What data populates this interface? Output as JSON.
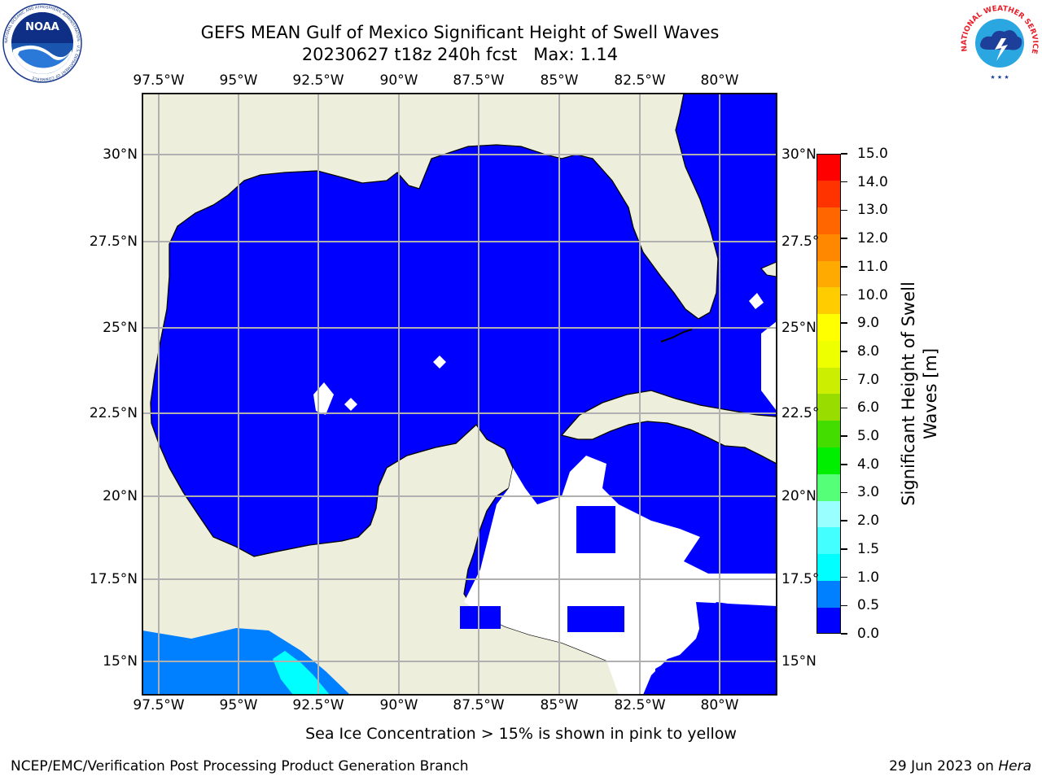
{
  "header": {
    "title_line1": "GEFS MEAN Gulf of Mexico Significant Height of Swell Waves",
    "title_line2": "20230627 t18z 240h fcst   Max: 1.14"
  },
  "logos": {
    "left": {
      "name": "NOAA",
      "ring_text": "NATIONAL OCEANIC AND ATMOSPHERIC ADMINISTRATION · U.S. DEPARTMENT OF COMMERCE"
    },
    "right": {
      "ring_text": "NATIONAL WEATHER SERVICE"
    }
  },
  "map": {
    "lon_labels": [
      "97.5°W",
      "95°W",
      "92.5°W",
      "90°W",
      "87.5°W",
      "85°W",
      "82.5°W",
      "80°W"
    ],
    "lat_labels": [
      "30°N",
      "27.5°N",
      "25°N",
      "22.5°N",
      "20°N",
      "17.5°N",
      "15°N"
    ],
    "lat_labels_right": [
      "30°N",
      "27.5°",
      "25°N",
      "22.5°",
      "20°N",
      "17.5°",
      "15°N"
    ],
    "colors": {
      "land": "#eeeedd",
      "ocean_low": "#0000ff",
      "ocean_mid": "#0080ff",
      "ocean_high": "#00ffff",
      "grid": "#b0b0b0"
    }
  },
  "colorbar": {
    "ticks": [
      "15.0",
      "14.0",
      "13.0",
      "12.0",
      "11.0",
      "10.0",
      "9.0",
      "8.0",
      "7.0",
      "6.0",
      "5.0",
      "4.0",
      "3.0",
      "2.0",
      "1.5",
      "1.0",
      "0.5",
      "0.0"
    ],
    "colors": [
      "#0000ff",
      "#0080ff",
      "#00ffff",
      "#44ffff",
      "#99ffff",
      "#55ff77",
      "#00ee00",
      "#44dd00",
      "#99dd00",
      "#ccee00",
      "#eeff00",
      "#ffff00",
      "#ffcc00",
      "#ffaa00",
      "#ff8800",
      "#ff6600",
      "#ff3300",
      "#ff0000"
    ],
    "label": "Significant Height of Swell Waves [m]",
    "label_line1": "Significant Height of Swell",
    "label_line2": "Waves [m]"
  },
  "footer": {
    "note": "Sea Ice Concentration > 15% is shown in pink to yellow",
    "credit_left": "NCEP/EMC/Verification Post Processing Product Generation Branch",
    "credit_date": "29 Jun 2023 on ",
    "credit_host": "Hera"
  }
}
